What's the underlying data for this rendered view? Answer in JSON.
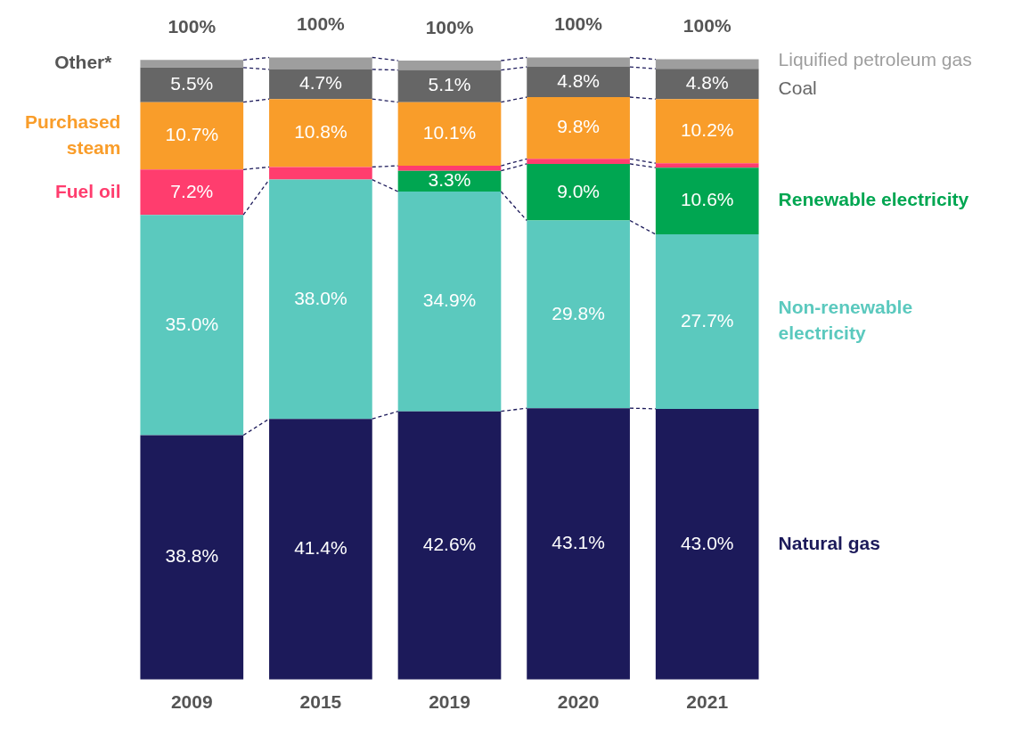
{
  "chart_data": {
    "type": "bar",
    "stacked": true,
    "categories": [
      "2009",
      "2015",
      "2019",
      "2020",
      "2021"
    ],
    "tick_labels": "x",
    "grid": false,
    "legend": false,
    "series": [
      {
        "name": "Natural gas",
        "color": "#1c1a5a",
        "values": [
          38.8,
          41.4,
          42.6,
          43.1,
          43.0
        ],
        "value_labels": [
          "38.8%",
          "41.4%",
          "42.6%",
          "43.1%",
          "43.0%"
        ]
      },
      {
        "name": "Non-renewable electricity",
        "color": "#5bc9be",
        "values": [
          35.0,
          38.0,
          34.9,
          29.8,
          27.7
        ],
        "value_labels": [
          "35.0%",
          "38.0%",
          "34.9%",
          "29.8%",
          "27.7%"
        ]
      },
      {
        "name": "Renewable electricity",
        "color": "#00a651",
        "values": [
          null,
          null,
          3.3,
          9.0,
          10.6
        ],
        "value_labels": [
          null,
          null,
          "3.3%",
          "9.0%",
          "10.6%"
        ]
      },
      {
        "name": "Fuel oil",
        "color": "#ff3d6e",
        "values": [
          7.2,
          2.0,
          0.8,
          0.8,
          0.7
        ],
        "value_labels": [
          "7.2%",
          null,
          null,
          null,
          null
        ]
      },
      {
        "name": "Purchased steam",
        "color": "#f99d2a",
        "values": [
          10.7,
          10.8,
          10.1,
          9.8,
          10.2
        ],
        "value_labels": [
          "10.7%",
          "10.8%",
          "10.1%",
          "9.8%",
          "10.2%"
        ]
      },
      {
        "name": "Coal",
        "color": "#666666",
        "values": [
          5.5,
          4.7,
          5.1,
          4.8,
          4.8
        ],
        "value_labels": [
          "5.5%",
          "4.7%",
          "5.1%",
          "4.8%",
          "4.8%"
        ]
      },
      {
        "name": "Liquified petroleum gas",
        "color": "#9e9e9e",
        "values": [
          1.2,
          1.9,
          1.5,
          1.5,
          1.5
        ]
      }
    ],
    "totals": [
      "100%",
      "100%",
      "100%",
      "100%",
      "100%"
    ],
    "annotations": [
      "Other*"
    ]
  }
}
